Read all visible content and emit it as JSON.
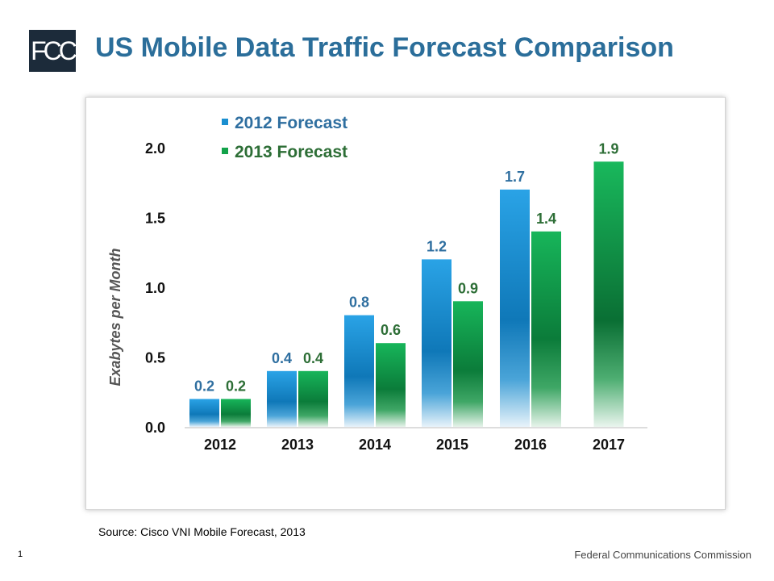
{
  "slide": {
    "logo_text": "FCC",
    "title": "US Mobile Data Traffic Forecast Comparison",
    "source": "Source: Cisco VNI Mobile Forecast, 2013",
    "page_number": "1",
    "footer_org": "Federal Communications Commission"
  },
  "colors": {
    "title": "#2b6e9a",
    "series_2012": "#1a8fd0",
    "series_2013": "#13a24a",
    "label_2012": "#2f6fa0",
    "label_2013": "#2d6e36"
  },
  "chart_data": {
    "type": "bar",
    "categories": [
      "2012",
      "2013",
      "2014",
      "2015",
      "2016",
      "2017"
    ],
    "series": [
      {
        "name": "2012 Forecast",
        "values": [
          0.2,
          0.4,
          0.8,
          1.2,
          1.7,
          null
        ],
        "labels": [
          "0.2",
          "0.4",
          "0.8",
          "1.2",
          "1.7",
          ""
        ]
      },
      {
        "name": "2013 Forecast",
        "values": [
          0.2,
          0.4,
          0.6,
          0.9,
          1.4,
          1.9
        ],
        "labels": [
          "0.2",
          "0.4",
          "0.6",
          "0.9",
          "1.4",
          "1.9"
        ]
      }
    ],
    "ylabel": "Exabytes per Month",
    "xlabel": "",
    "ylim": [
      0,
      2.0
    ],
    "yticks": [
      "0.0",
      "0.5",
      "1.0",
      "1.5",
      "2.0"
    ],
    "grid": false,
    "legend_position": "top-left"
  }
}
